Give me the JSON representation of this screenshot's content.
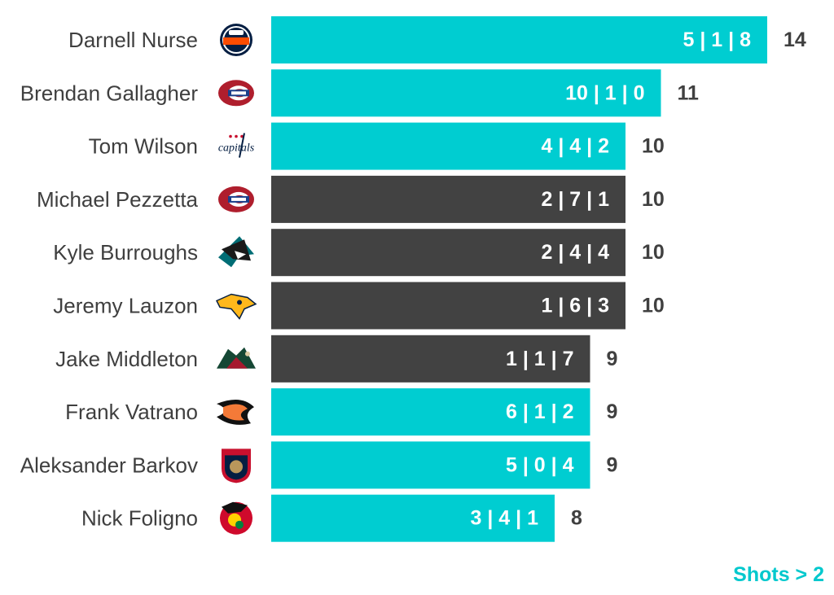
{
  "chart_data": {
    "type": "bar",
    "orientation": "horizontal",
    "xlim": [
      0,
      14
    ],
    "bars": [
      {
        "player": "Darnell Nurse",
        "team": "Edmonton Oilers",
        "label": "5 | 1 | 8",
        "value": 14,
        "highlight": true
      },
      {
        "player": "Brendan Gallagher",
        "team": "Montreal Canadiens",
        "label": "10 | 1 | 0",
        "value": 11,
        "highlight": true
      },
      {
        "player": "Tom Wilson",
        "team": "Washington Capitals",
        "label": "4 | 4 | 2",
        "value": 10,
        "highlight": true
      },
      {
        "player": "Michael Pezzetta",
        "team": "Montreal Canadiens",
        "label": "2 | 7 | 1",
        "value": 10,
        "highlight": false
      },
      {
        "player": "Kyle Burroughs",
        "team": "San Jose Sharks",
        "label": "2 | 4 | 4",
        "value": 10,
        "highlight": false
      },
      {
        "player": "Jeremy Lauzon",
        "team": "Nashville Predators",
        "label": "1 | 6 | 3",
        "value": 10,
        "highlight": false
      },
      {
        "player": "Jake Middleton",
        "team": "Minnesota Wild",
        "label": "1 | 1 | 7",
        "value": 9,
        "highlight": false
      },
      {
        "player": "Frank Vatrano",
        "team": "Anaheim Ducks",
        "label": "6 | 1 | 2",
        "value": 9,
        "highlight": true
      },
      {
        "player": "Aleksander Barkov",
        "team": "Florida Panthers",
        "label": "5 | 0 | 4",
        "value": 9,
        "highlight": true
      },
      {
        "player": "Nick Foligno",
        "team": "Chicago Blackhawks",
        "label": "3 | 4 | 1",
        "value": 8,
        "highlight": true
      }
    ],
    "colors": {
      "highlight": "#00cdd1",
      "other": "#424242"
    },
    "footnote": "Shots > 2"
  }
}
